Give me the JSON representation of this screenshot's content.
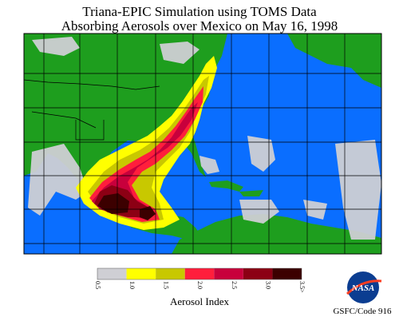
{
  "title": [
    "Triana-EPIC Simulation using TOMS Data",
    "Absorbing Aerosols over Mexico on May 16, 1998"
  ],
  "colorbar": {
    "label": "Aerosol Index",
    "ticks": [
      "0.5",
      "1.0",
      "1.5",
      "2.0",
      "2.5",
      "3.0",
      "3.5>"
    ],
    "colors": [
      "#cfcfd4",
      "#ffff00",
      "#c8c800",
      "#ff1e3c",
      "#c8003c",
      "#8c0014",
      "#3c0000"
    ]
  },
  "logo": "NASA",
  "credit": "GSFC/Code 916"
}
